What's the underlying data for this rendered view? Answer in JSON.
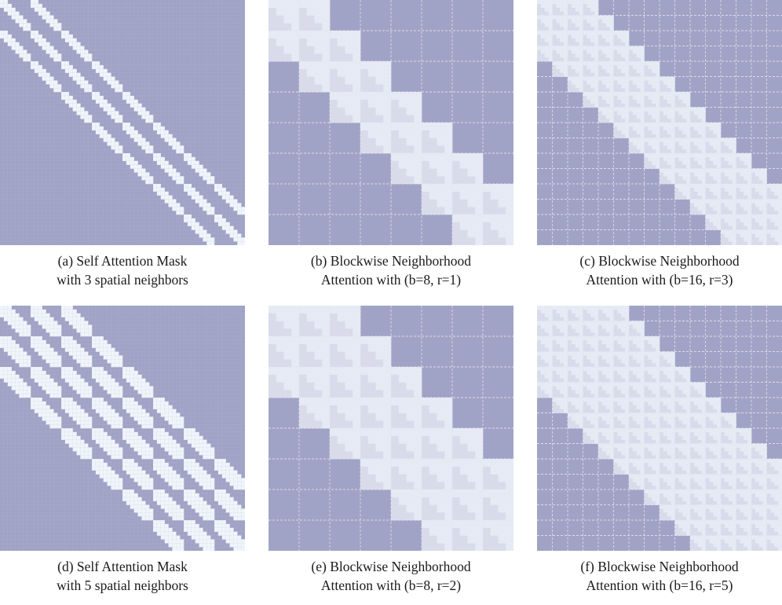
{
  "colors": {
    "masked": "#a1a3c6",
    "attended": "#f1f5fb",
    "block_band": "#d9dbeb",
    "grid_fine": "#b6b8d3",
    "grid_block": "#e4e5f0"
  },
  "panels": [
    {
      "caption_line1": "(a) Self Attention Mask",
      "caption_line2": "with 3 spatial neighbors",
      "pattern": "self_attention_mask",
      "grid_size": 8,
      "neighbors": 3
    },
    {
      "caption_line1": "(b) Blockwise Neighborhood",
      "caption_line2": "Attention with (b=8, r=1)",
      "pattern": "blockwise_neighborhood",
      "b": 8,
      "r": 1
    },
    {
      "caption_line1": "(c) Blockwise Neighborhood",
      "caption_line2": "Attention with (b=16, r=3)",
      "pattern": "blockwise_neighborhood",
      "b": 16,
      "r": 3
    },
    {
      "caption_line1": "(d) Self Attention Mask",
      "caption_line2": "with 5 spatial neighbors",
      "pattern": "self_attention_mask",
      "grid_size": 8,
      "neighbors": 5
    },
    {
      "caption_line1": "(e) Blockwise Neighborhood",
      "caption_line2": "Attention with (b=8, r=2)",
      "pattern": "blockwise_neighborhood",
      "b": 8,
      "r": 2
    },
    {
      "caption_line1": "(f) Blockwise Neighborhood",
      "caption_line2": "Attention with (b=16, r=5)",
      "pattern": "blockwise_neighborhood",
      "b": 16,
      "r": 5
    }
  ]
}
